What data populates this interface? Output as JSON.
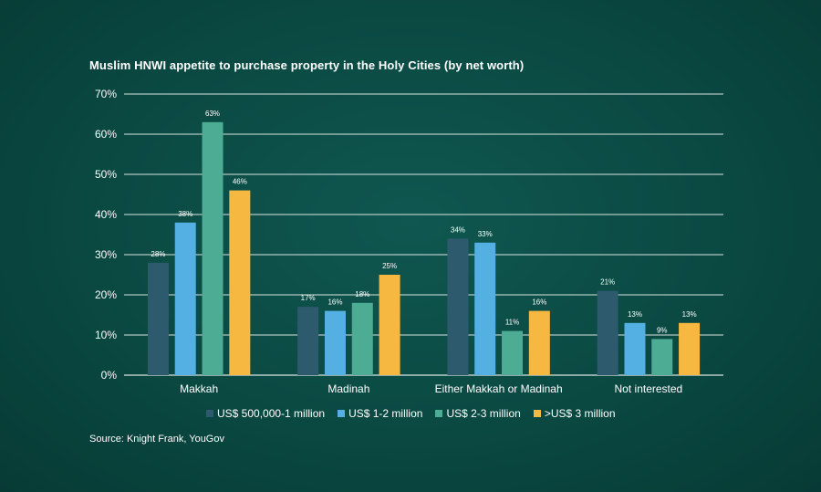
{
  "chart_data": {
    "type": "bar",
    "title": "Muslim HNWI appetite to purchase property in the Holy Cities (by net worth)",
    "categories": [
      "Makkah",
      "Madinah",
      "Either Makkah or Madinah",
      "Not interested"
    ],
    "series": [
      {
        "name": "US$ 500,000-1 million",
        "color": "#2e5a6e",
        "values": [
          28,
          17,
          34,
          21
        ]
      },
      {
        "name": "US$ 1-2 million",
        "color": "#54b0e3",
        "values": [
          38,
          16,
          33,
          13
        ]
      },
      {
        "name": "US$ 2-3 million",
        "color": "#4cac94",
        "values": [
          63,
          18,
          11,
          9
        ]
      },
      {
        "name": ">US$ 3 million",
        "color": "#f6b841",
        "values": [
          46,
          25,
          16,
          13
        ]
      }
    ],
    "data_labels": [
      [
        "28%",
        "17%",
        "34%",
        "21%"
      ],
      [
        "38%",
        "16%",
        "33%",
        "13%"
      ],
      [
        "63%",
        "18%",
        "11%",
        "9%"
      ],
      [
        "46%",
        "25%",
        "16%",
        "13%"
      ]
    ],
    "yticks": [
      "0%",
      "10%",
      "20%",
      "30%",
      "40%",
      "50%",
      "60%",
      "70%"
    ],
    "ylim": [
      0,
      70
    ],
    "grid": true,
    "legend_position": "bottom",
    "source": "Source: Knight Frank, YouGov"
  }
}
